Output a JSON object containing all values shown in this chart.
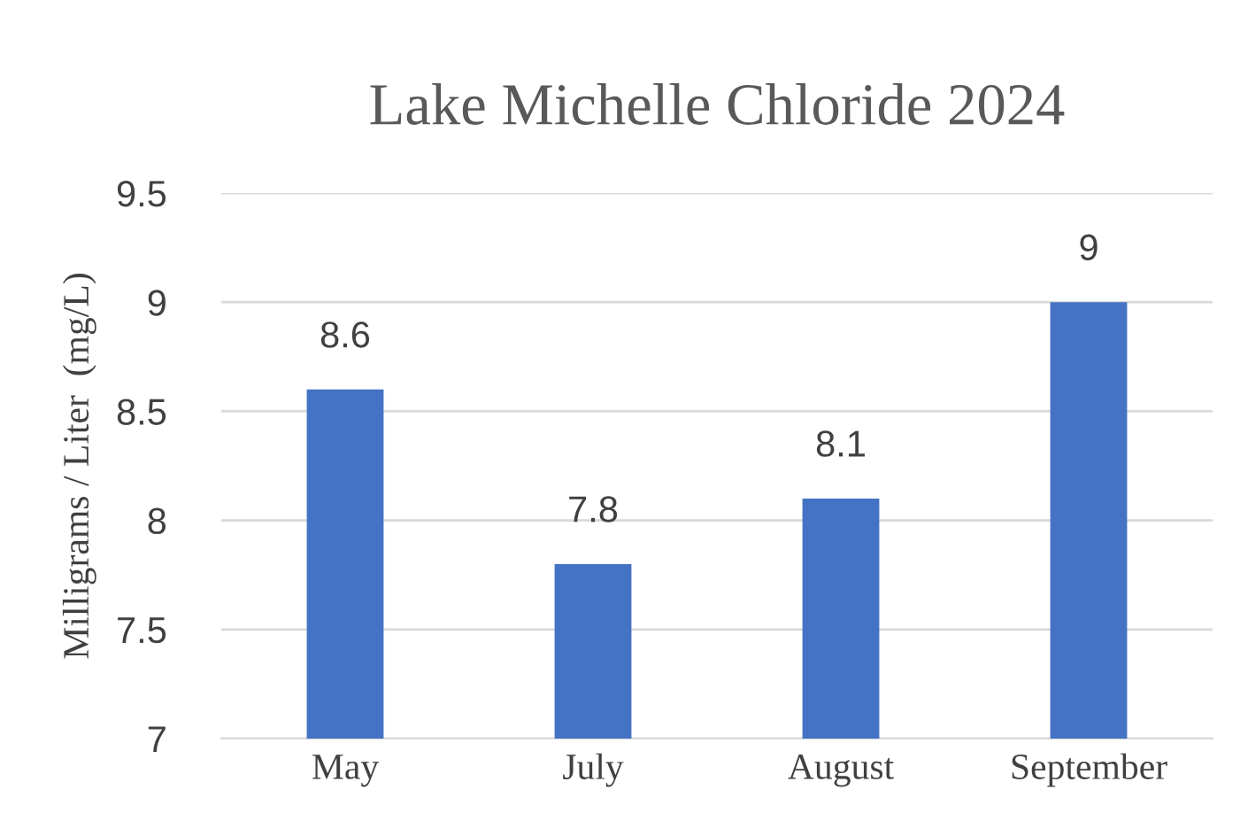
{
  "chart_data": {
    "type": "bar",
    "title": "Lake Michelle Chloride 2024",
    "ylabel": "Milligrams / Liter  (mg/L)",
    "categories": [
      "May",
      "July",
      "August",
      "September"
    ],
    "values": [
      8.6,
      7.8,
      8.1,
      9
    ],
    "color": "#4472c4",
    "ylim": [
      7,
      9.5
    ],
    "yticks": [
      7,
      7.5,
      8,
      8.5,
      9,
      9.5
    ],
    "grid": "y",
    "data_labels": true,
    "legend": false
  }
}
